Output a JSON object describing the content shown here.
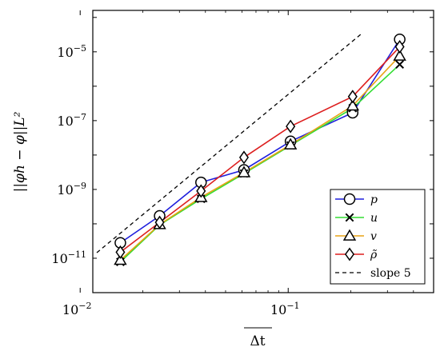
{
  "chart_data": {
    "type": "line",
    "xscale": "log",
    "yscale": "log",
    "xlim": [
      0.0115,
      0.5
    ],
    "ylim": [
      1e-12,
      0.00016
    ],
    "xlabel": "Δt",
    "ylabel": "||φh − φ||L²",
    "x_ticks": [
      {
        "value": 0.01,
        "base": "10",
        "exp": "−2"
      },
      {
        "value": 0.1,
        "base": "10",
        "exp": "−1"
      }
    ],
    "y_ticks": [
      {
        "value": 1e-11,
        "base": "10",
        "exp": "−11"
      },
      {
        "value": 1e-09,
        "base": "10",
        "exp": "−9"
      },
      {
        "value": 1e-07,
        "base": "10",
        "exp": "−7"
      },
      {
        "value": 1e-05,
        "base": "10",
        "exp": "−5"
      }
    ],
    "series": [
      {
        "name": "p",
        "color": "#1f1fdd",
        "marker": "circle",
        "x": [
          0.0156,
          0.0241,
          0.0381,
          0.0613,
          0.1026,
          0.2041,
          0.3436
        ],
        "y": [
          2.8e-11,
          1.7e-10,
          1.6e-09,
          3.7e-09,
          2.5e-08,
          1.7e-07,
          2.3e-05
        ]
      },
      {
        "name": "u",
        "color": "#33dd33",
        "marker": "x",
        "x": [
          0.0156,
          0.0241,
          0.0381,
          0.0613,
          0.1026,
          0.2041,
          0.3436
        ],
        "y": [
          7.8e-12,
          9.3e-11,
          5.3e-10,
          2.9e-09,
          1.9e-08,
          2.3e-07,
          4.3e-06
        ]
      },
      {
        "name": "v",
        "color": "#e8a317",
        "marker": "triangle",
        "x": [
          0.0156,
          0.0241,
          0.0381,
          0.0613,
          0.1026,
          0.2041,
          0.3436
        ],
        "y": [
          8.8e-12,
          9.6e-11,
          5.9e-10,
          3.1e-09,
          2e-08,
          2.7e-07,
          7.6e-06
        ]
      },
      {
        "name": "ρ̃",
        "color": "#dd1f1f",
        "marker": "diamond",
        "x": [
          0.0156,
          0.0241,
          0.0381,
          0.0613,
          0.1026,
          0.2041,
          0.3436
        ],
        "y": [
          1.5e-11,
          1.1e-10,
          9e-10,
          8.5e-09,
          6.8e-08,
          5e-07,
          1.4e-05
        ]
      }
    ],
    "reference_line": {
      "name": "slope 5",
      "color": "#000000",
      "dash": true,
      "x": [
        0.01202,
        0.2244
      ],
      "y": [
        1.45e-11,
        3.3e-05
      ]
    },
    "legend": {
      "placement": "bottom-right"
    },
    "grid": false
  }
}
